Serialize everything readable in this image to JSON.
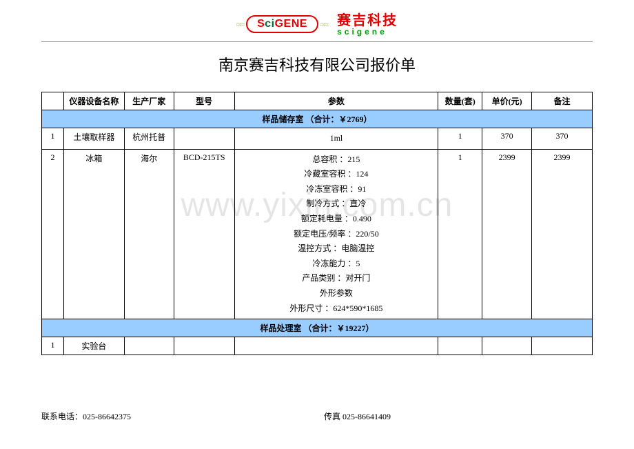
{
  "logo": {
    "scigene": "SciGENE",
    "cn": "赛吉科技",
    "en": "scigene"
  },
  "title": "南京赛吉科技有限公司报价单",
  "columns": {
    "idx": "",
    "name": "仪器设备名称",
    "mfr": "生产厂家",
    "model": "型号",
    "param": "参数",
    "qty": "数量(套)",
    "price": "单价(元)",
    "note": "备注"
  },
  "sections": [
    {
      "header": "样品储存室 （合计：￥2769）",
      "rows": [
        {
          "idx": "1",
          "name": "土壤取样器",
          "mfr": "杭州托普",
          "model": "",
          "param_lines": [
            "1ml"
          ],
          "qty": "1",
          "price": "370",
          "note": "370"
        },
        {
          "idx": "2",
          "name": "冰箱",
          "mfr": "海尔",
          "model": "BCD-215TS",
          "param_lines": [
            "总容积 ：215",
            "冷藏室容积 ：124",
            "冷冻室容积 ：91",
            "制冷方式 ：直冷",
            "额定耗电量 ：0.490",
            "额定电压/频率 ：220/50",
            "温控方式 ：电脑温控",
            "冷冻能力 ：5",
            "产品类别 ：对开门",
            "外形参数",
            "外形尺寸 ：624*590*1685"
          ],
          "qty": "1",
          "price": "2399",
          "note": "2399"
        }
      ]
    },
    {
      "header": "样品处理室 （合计：￥19227）",
      "rows": [
        {
          "idx": "1",
          "name": "实验台",
          "mfr": "",
          "model": "",
          "param_lines": [
            ""
          ],
          "qty": "",
          "price": "",
          "note": ""
        }
      ]
    }
  ],
  "footer": {
    "phone_label": "联系电话：",
    "phone": "025-86642375",
    "fax_label": "传真 ",
    "fax": "025-86641409"
  },
  "watermark": "www.yixin.com.cn",
  "style": {
    "section_bg": "#99ccff",
    "border_color": "#000000",
    "logo_red": "#e30000",
    "logo_green": "#00a000"
  }
}
